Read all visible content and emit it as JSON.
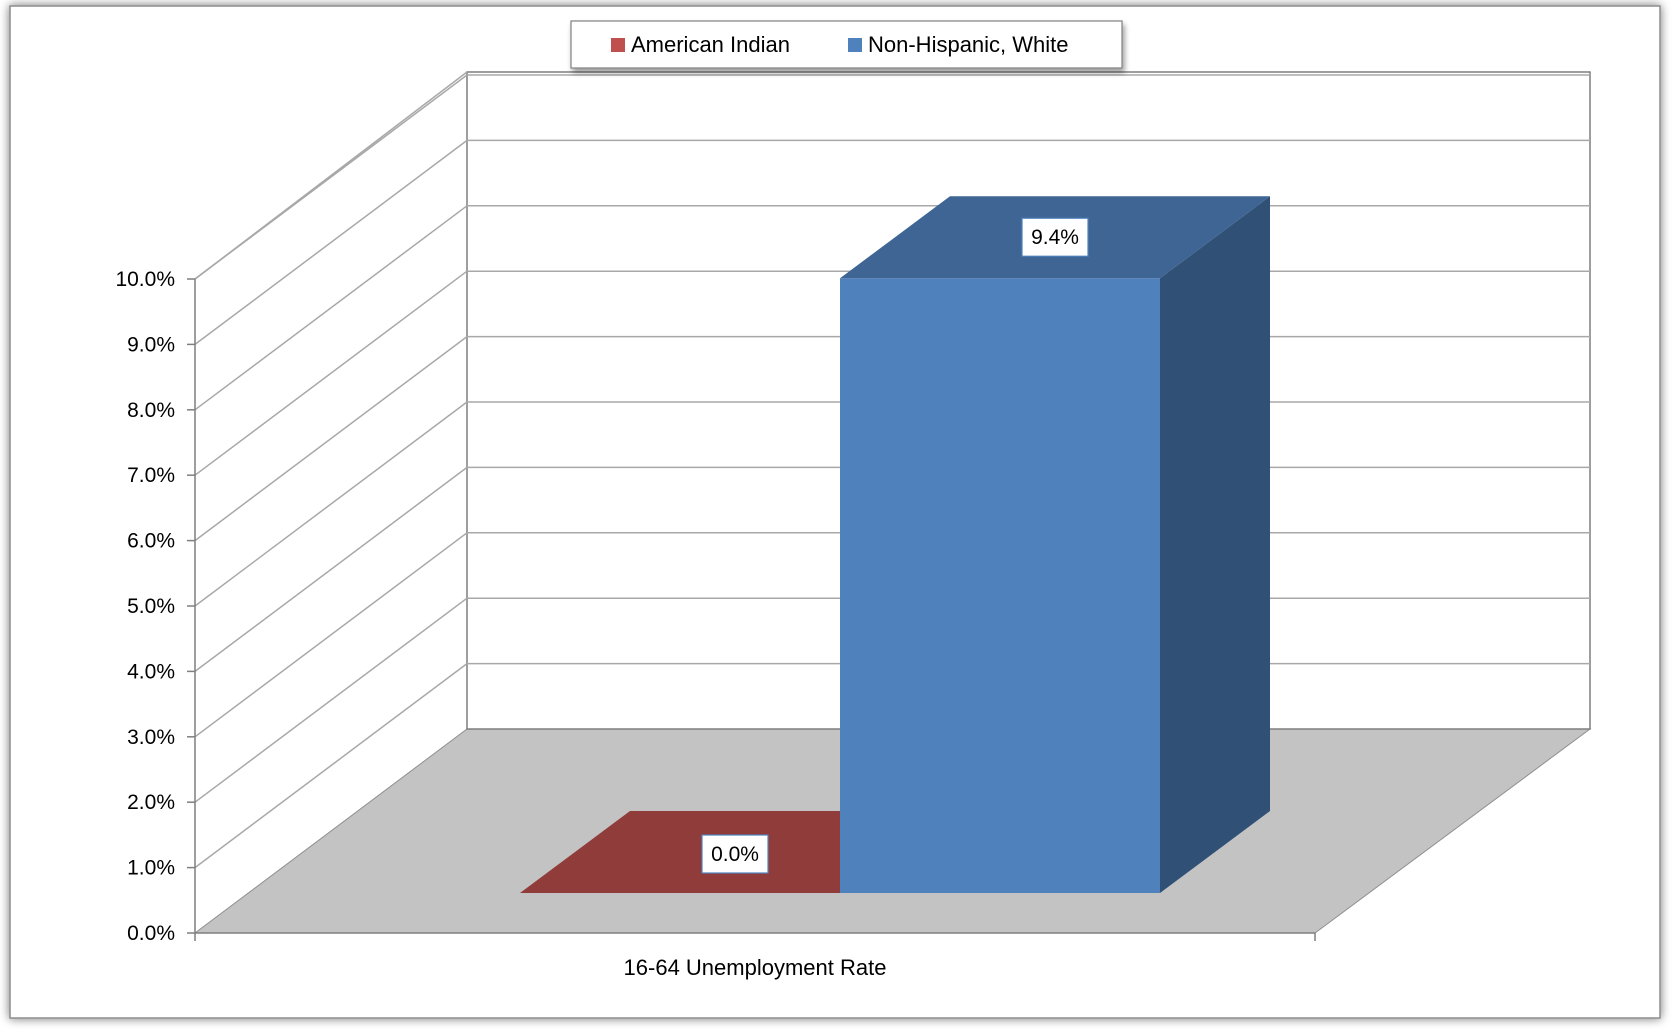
{
  "chart_data": {
    "type": "bar",
    "categories": [
      "16-64 Unemployment Rate"
    ],
    "series": [
      {
        "name": "American Indian",
        "values": [
          0.0
        ],
        "value_labels": [
          "0.0%"
        ],
        "color": "#C0504D"
      },
      {
        "name": "Non-Hispanic, White",
        "values": [
          9.4
        ],
        "value_labels": [
          "9.4%"
        ],
        "color": "#4F81BD"
      }
    ],
    "title": "",
    "xlabel": "",
    "ylabel": "",
    "ylim": [
      0,
      10
    ],
    "y_ticks": [
      "0.0%",
      "1.0%",
      "2.0%",
      "3.0%",
      "4.0%",
      "5.0%",
      "6.0%",
      "7.0%",
      "8.0%",
      "9.0%",
      "10.0%"
    ],
    "grid": true,
    "legend_position": "top",
    "style": "3d-column"
  }
}
